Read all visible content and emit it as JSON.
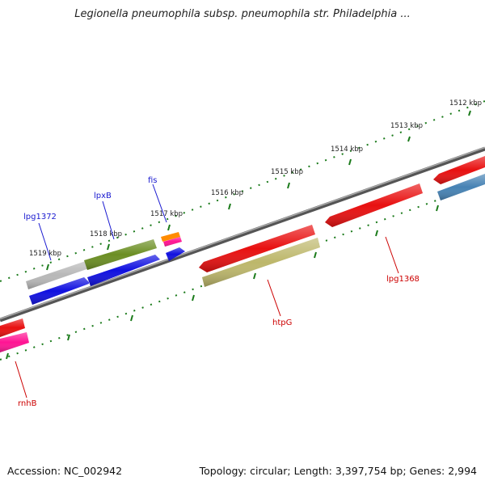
{
  "header": {
    "title": "Legionella pneumophila subsp. pneumophila str. Philadelphia ..."
  },
  "footer": {
    "accession": "Accession: NC_002942",
    "stats": "Topology: circular; Length: 3,397,754 bp; Genes: 2,994"
  },
  "scale_labels": [
    "1512 kbp",
    "1513 kbp",
    "1514 kbp",
    "1515 kbp",
    "1516 kbp",
    "1517 kbp",
    "1518 kbp",
    "1519 kbp"
  ],
  "gene_labels": {
    "lpg1372": "lpg1372",
    "lpxB": "lpxB",
    "fis": "fis",
    "lpg1368": "lpg1368",
    "htpG": "htpG",
    "rnhB": "rnhB"
  },
  "colors": {
    "red": "#e81010",
    "blue": "#1010e0",
    "olive": "#6b8e23",
    "khaki": "#bdb76b",
    "gray": "#b8b8b8",
    "steelblue": "#4682b4",
    "pink": "#ff1493",
    "orange": "#ff8c00",
    "tick": "#1a7a1a",
    "backbone": "#777777",
    "label_blue": "#1a1ad0",
    "label_red": "#cc0000"
  }
}
